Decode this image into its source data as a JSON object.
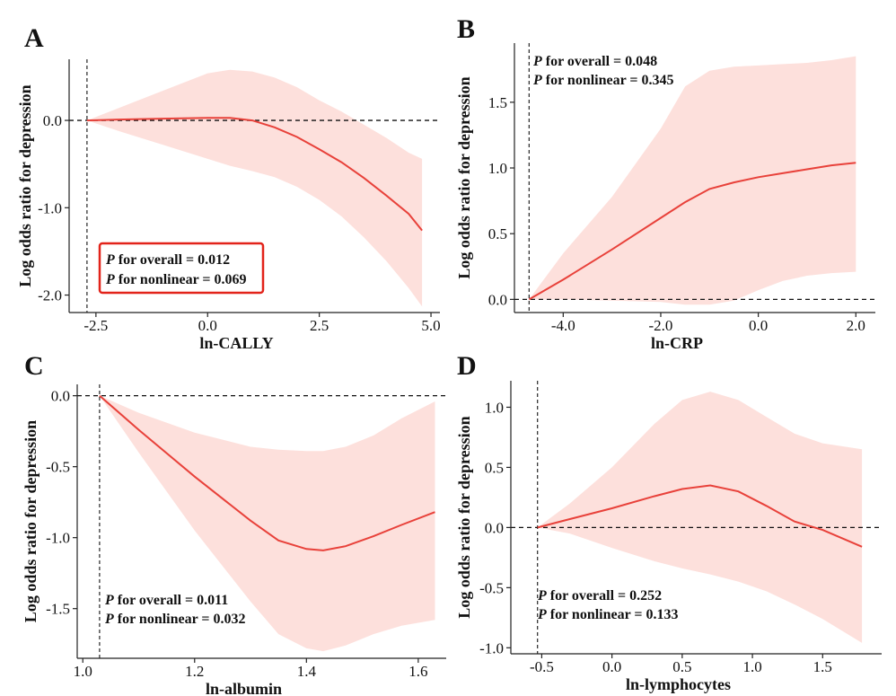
{
  "chart_data": [
    {
      "type": "line",
      "letter": "A",
      "xlabel": "ln-CALLY",
      "ylabel": "Log odds ratio for depression",
      "xlim": [
        -3.1,
        5.2
      ],
      "ylim": [
        -2.2,
        0.7
      ],
      "xticks": [
        -2.5,
        0,
        2.5,
        5
      ],
      "xtick_labels": [
        "-2.5",
        "0.0",
        "2.5",
        "5.0"
      ],
      "yticks": [
        0,
        -1,
        -2
      ],
      "ytick_labels": [
        "0.0",
        "-1.0",
        "-2.0"
      ],
      "ref_x": -2.7,
      "ref_y": 0,
      "series": [
        {
          "x": [
            -2.7,
            -2.0,
            -1.0,
            0.0,
            0.5,
            1.0,
            1.5,
            2.0,
            2.5,
            3.0,
            3.5,
            4.0,
            4.5,
            4.8
          ],
          "y": [
            0,
            0.01,
            0.02,
            0.03,
            0.03,
            0.0,
            -0.08,
            -0.19,
            -0.33,
            -0.48,
            -0.66,
            -0.86,
            -1.07,
            -1.26
          ],
          "lower": [
            0,
            -0.12,
            -0.28,
            -0.44,
            -0.52,
            -0.58,
            -0.65,
            -0.76,
            -0.91,
            -1.1,
            -1.34,
            -1.61,
            -1.92,
            -2.13
          ],
          "upper": [
            0,
            0.14,
            0.34,
            0.54,
            0.58,
            0.56,
            0.49,
            0.38,
            0.23,
            0.1,
            -0.05,
            -0.2,
            -0.37,
            -0.44
          ]
        }
      ],
      "pvalues": {
        "overall_value": "0.012",
        "nonlinear_value": "0.069",
        "boxed": true,
        "box_color": "#e2231a"
      }
    },
    {
      "type": "line",
      "letter": "B",
      "xlabel": "ln-CRP",
      "ylabel": "Log odds ratio for depression",
      "xlim": [
        -5.0,
        2.4
      ],
      "ylim": [
        -0.1,
        1.95
      ],
      "xticks": [
        -4,
        -2,
        0,
        2
      ],
      "xtick_labels": [
        "-4.0",
        "-2.0",
        "0.0",
        "2.0"
      ],
      "yticks": [
        0,
        0.5,
        1.0,
        1.5
      ],
      "ytick_labels": [
        "0.0",
        "0.5",
        "1.0",
        "1.5"
      ],
      "ref_x": -4.7,
      "ref_y": 0,
      "series": [
        {
          "x": [
            -4.7,
            -4.0,
            -3.0,
            -2.0,
            -1.5,
            -1.0,
            -0.5,
            0.0,
            0.5,
            1.0,
            1.5,
            2.0
          ],
          "y": [
            0,
            0.15,
            0.38,
            0.62,
            0.74,
            0.84,
            0.89,
            0.93,
            0.96,
            0.99,
            1.02,
            1.04
          ],
          "lower": [
            0,
            0.0,
            -0.01,
            -0.02,
            -0.04,
            -0.04,
            -0.01,
            0.07,
            0.14,
            0.18,
            0.2,
            0.21
          ],
          "upper": [
            0,
            0.35,
            0.78,
            1.3,
            1.62,
            1.74,
            1.77,
            1.78,
            1.79,
            1.8,
            1.82,
            1.85
          ]
        }
      ],
      "pvalues": {
        "overall_value": "0.048",
        "nonlinear_value": "0.345",
        "boxed": false
      }
    },
    {
      "type": "line",
      "letter": "C",
      "xlabel": "ln-albumin",
      "ylabel": "Log odds ratio for depression",
      "xlim": [
        0.99,
        1.65
      ],
      "ylim": [
        -1.85,
        0.08
      ],
      "xticks": [
        1.0,
        1.2,
        1.4,
        1.6
      ],
      "xtick_labels": [
        "1.0",
        "1.2",
        "1.4",
        "1.6"
      ],
      "yticks": [
        0,
        -0.5,
        -1.0,
        -1.5
      ],
      "ytick_labels": [
        "0.0",
        "-0.5",
        "-1.0",
        "-1.5"
      ],
      "ref_x": 1.03,
      "ref_y": 0,
      "series": [
        {
          "x": [
            1.03,
            1.1,
            1.2,
            1.3,
            1.35,
            1.4,
            1.43,
            1.47,
            1.52,
            1.57,
            1.63
          ],
          "y": [
            0,
            -0.24,
            -0.57,
            -0.88,
            -1.02,
            -1.08,
            -1.09,
            -1.06,
            -0.99,
            -0.91,
            -0.82
          ],
          "lower": [
            0,
            -0.4,
            -0.95,
            -1.45,
            -1.68,
            -1.78,
            -1.8,
            -1.76,
            -1.68,
            -1.62,
            -1.58
          ],
          "upper": [
            0,
            -0.12,
            -0.26,
            -0.36,
            -0.38,
            -0.39,
            -0.39,
            -0.36,
            -0.28,
            -0.16,
            -0.04
          ]
        }
      ],
      "pvalues": {
        "overall_value": "0.011",
        "nonlinear_value": "0.032",
        "boxed": false
      }
    },
    {
      "type": "line",
      "letter": "D",
      "xlabel": "ln-lymphocytes",
      "ylabel": "Log odds ratio for depression",
      "xlim": [
        -0.72,
        1.92
      ],
      "ylim": [
        -1.05,
        1.22
      ],
      "xticks": [
        -0.5,
        0,
        0.5,
        1.0,
        1.5
      ],
      "xtick_labels": [
        "-0.5",
        "0.0",
        "0.5",
        "1.0",
        "1.5"
      ],
      "yticks": [
        1.0,
        0.5,
        0,
        -0.5,
        -1.0
      ],
      "ytick_labels": [
        "1.0",
        "0.5",
        "0.0",
        "-0.5",
        "-1.0"
      ],
      "ref_x": -0.53,
      "ref_y": 0,
      "series": [
        {
          "x": [
            -0.53,
            -0.3,
            0.0,
            0.3,
            0.5,
            0.7,
            0.9,
            1.1,
            1.3,
            1.5,
            1.78
          ],
          "y": [
            0,
            0.07,
            0.16,
            0.26,
            0.32,
            0.35,
            0.3,
            0.18,
            0.05,
            -0.02,
            -0.16
          ],
          "lower": [
            0,
            -0.05,
            -0.17,
            -0.28,
            -0.34,
            -0.39,
            -0.45,
            -0.53,
            -0.64,
            -0.76,
            -0.96
          ],
          "upper": [
            0,
            0.2,
            0.5,
            0.86,
            1.06,
            1.13,
            1.06,
            0.92,
            0.78,
            0.7,
            0.65
          ]
        }
      ],
      "pvalues": {
        "overall_value": "0.252",
        "nonlinear_value": "0.133",
        "boxed": false
      }
    }
  ],
  "labels": {
    "p_symbol": "P",
    "overall_text": " for overall = ",
    "nonlinear_text": " for nonlinear = "
  },
  "colors": {
    "line": "#e8413a",
    "ci_band": "#fde0dc",
    "axis": "#222222",
    "box": "#e2231a"
  }
}
